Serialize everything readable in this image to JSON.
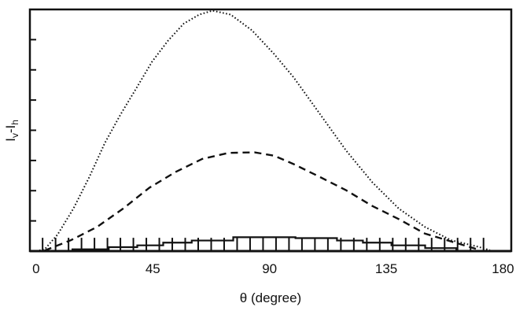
{
  "chart_data": {
    "type": "line",
    "title": "",
    "xlabel": "θ (degree)",
    "ylabel": {
      "base": "I",
      "sub1": "v",
      "mid": "-I",
      "sub2": "h"
    },
    "xlim": [
      -2.4,
      183.2
    ],
    "ylim": [
      0,
      8
    ],
    "x_ticks": [
      0,
      45,
      90,
      135,
      180
    ],
    "x_tick_labels": [
      "0",
      "45",
      "90",
      "135",
      "180"
    ],
    "y_ticks": [
      0,
      1,
      2,
      3,
      4,
      5,
      6,
      7,
      8
    ],
    "y_tick_labels_shown": false,
    "grid": false,
    "legend": "none",
    "frame": "box",
    "colors": {
      "line": "#111111",
      "frame_edge": "#d98080"
    },
    "series": [
      {
        "style": "dotted",
        "x": [
          0,
          3.3,
          8.3,
          14.4,
          20.5,
          26.5,
          32.6,
          38.7,
          44.7,
          50.8,
          56.9,
          62.9,
          68,
          75,
          83.2,
          91.7,
          99.3,
          109.5,
          119.6,
          129.7,
          139.8,
          149.9,
          160,
          170.1,
          175
        ],
        "y": [
          0,
          0.06,
          0.55,
          1.41,
          2.45,
          3.58,
          4.53,
          5.4,
          6.27,
          6.96,
          7.53,
          7.83,
          7.96,
          7.83,
          7.31,
          6.53,
          5.75,
          4.53,
          3.32,
          2.27,
          1.41,
          0.8,
          0.36,
          0.15,
          0.03
        ]
      },
      {
        "style": "dashed",
        "x": [
          3.3,
          13.4,
          23.5,
          33.6,
          43.7,
          53.8,
          64,
          74.1,
          84.2,
          91.7,
          99.3,
          109.5,
          119.6,
          129.7,
          139.8,
          149.9,
          160,
          170.1
        ],
        "y": [
          0.02,
          0.36,
          0.8,
          1.41,
          2.1,
          2.62,
          3.05,
          3.25,
          3.27,
          3.16,
          2.88,
          2.45,
          2.01,
          1.49,
          1.06,
          0.58,
          0.32,
          0.06
        ]
      },
      {
        "style": "solid-step",
        "edges": [
          14,
          28,
          39,
          49,
          60,
          76,
          100,
          116,
          126,
          137,
          150,
          162
        ],
        "values": [
          0.06,
          0.13,
          0.19,
          0.28,
          0.35,
          0.46,
          0.43,
          0.35,
          0.28,
          0.19,
          0.1
        ]
      }
    ],
    "error_bars": {
      "theta_start": 2.5,
      "theta_step": 5,
      "count": 35,
      "low": 0,
      "high": 0.44
    }
  }
}
